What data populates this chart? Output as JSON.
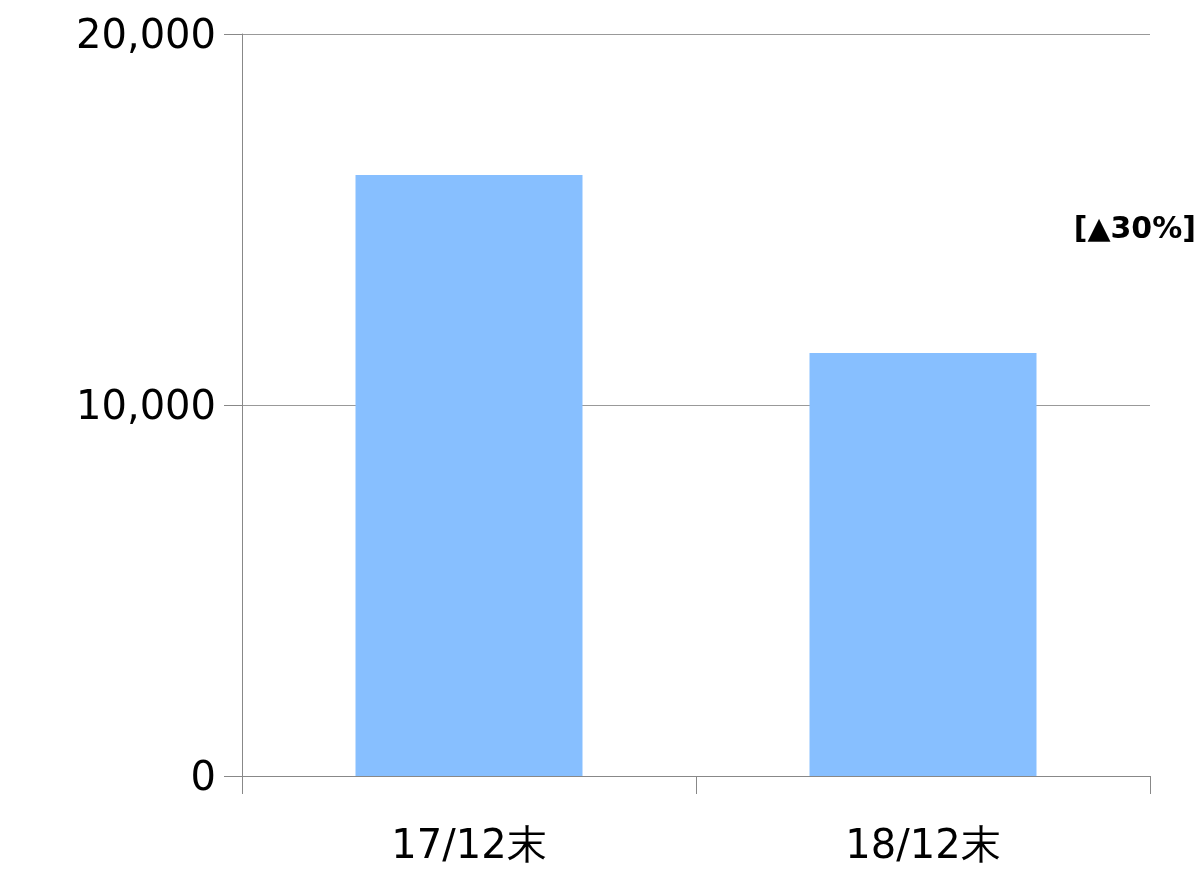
{
  "chart_data": {
    "type": "bar",
    "categories": [
      "17/12末",
      "18/12末"
    ],
    "values": [
      16200,
      11400
    ],
    "color": "#87bfff",
    "ylim": [
      0,
      20000
    ],
    "yticks": [
      0,
      {
        "value": 10000,
        "label": "10,000"
      },
      {
        "value": 20000,
        "label": "20,000"
      }
    ],
    "grid": "y",
    "annotations": [
      "[▲30%]"
    ]
  }
}
